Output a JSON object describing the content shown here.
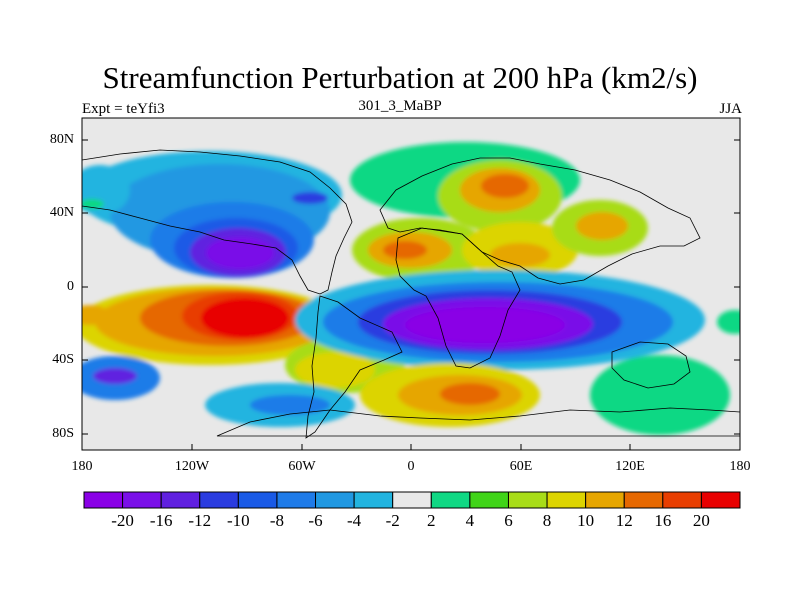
{
  "title": "Streamfunction Perturbation at 200 hPa (km2/s)",
  "left_label": "Expt = teYfi3",
  "center_label": "301_3_MaBP",
  "right_label": "JJA",
  "map": {
    "projection": "cylindrical equidistant",
    "lon_range": [
      -180,
      180
    ],
    "lat_range": [
      -90,
      90
    ],
    "background_color": "#e8e8e8",
    "coastline_color": "#000000",
    "lat_tick_labels": [
      "80N",
      "40N",
      "0",
      "40S",
      "80S"
    ],
    "lon_tick_labels": [
      "180",
      "120W",
      "60W",
      "0",
      "60E",
      "120E",
      "180"
    ]
  },
  "colorbar": {
    "tick_labels": [
      "-20",
      "-16",
      "-12",
      "-10",
      "-8",
      "-6",
      "-4",
      "-2",
      "2",
      "4",
      "6",
      "8",
      "10",
      "12",
      "16",
      "20"
    ],
    "colors": [
      "#8a00e6",
      "#7a10e8",
      "#6020e0",
      "#2a3ce0",
      "#1a5ae6",
      "#1f7be8",
      "#2098e2",
      "#22b4e0",
      "#e8e8e8",
      "#10d884",
      "#40d418",
      "#a8dc18",
      "#dcd400",
      "#e6a600",
      "#e66800",
      "#e83e00",
      "#e80000"
    ]
  }
}
